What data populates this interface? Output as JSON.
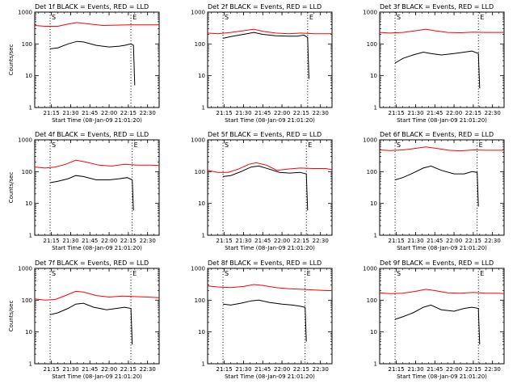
{
  "figure": {
    "background": "#ffffff",
    "axis_color": "#000000"
  },
  "chart_data": [
    {
      "type": "line",
      "title": "Det 1f BLACK = Events, RED = LLD",
      "xlabel": "Start Time (08-Jan-09 21:01:20)",
      "ylabel": "Counts/sec",
      "yscale": "log",
      "ylim": [
        1,
        1000
      ],
      "xlim": [
        "21:02",
        "22:39"
      ],
      "x_ticks": [
        "21:15",
        "21:30",
        "21:45",
        "22:00",
        "22:15",
        "22:30"
      ],
      "y_ticks": [
        "1",
        "10",
        "100",
        "1000"
      ],
      "markers": [
        {
          "time": "21:14",
          "label": "S"
        },
        {
          "time": "22:17",
          "label": "E"
        }
      ],
      "series": [
        {
          "color": "#ff0000",
          "x": [
            "21:02",
            "21:10",
            "21:20",
            "21:28",
            "21:35",
            "21:45",
            "21:55",
            "22:05",
            "22:15",
            "22:25",
            "22:35",
            "22:39"
          ],
          "y": [
            380,
            360,
            360,
            420,
            470,
            420,
            380,
            390,
            400,
            400,
            400,
            400
          ]
        },
        {
          "color": "#000000",
          "x": [
            "21:14",
            "21:20",
            "21:28",
            "21:35",
            "21:40",
            "21:50",
            "22:00",
            "22:08",
            "22:12",
            "22:17",
            "22:19",
            "22:20"
          ],
          "y": [
            70,
            75,
            100,
            120,
            115,
            90,
            80,
            85,
            90,
            100,
            90,
            5
          ]
        }
      ]
    },
    {
      "type": "line",
      "title": "Det 2f BLACK = Events, RED = LLD",
      "xlabel": "Start Time (08-Jan-09 21:01:20)",
      "ylabel": "",
      "yscale": "log",
      "ylim": [
        1,
        1000
      ],
      "xlim": [
        "21:02",
        "22:39"
      ],
      "x_ticks": [
        "21:15",
        "21:30",
        "21:45",
        "22:00",
        "22:15",
        "22:30"
      ],
      "y_ticks": [
        "1",
        "10",
        "100",
        "1000"
      ],
      "markers": [
        {
          "time": "21:14",
          "label": "S"
        },
        {
          "time": "22:20",
          "label": "E"
        }
      ],
      "series": [
        {
          "color": "#ff0000",
          "x": [
            "21:02",
            "21:10",
            "21:20",
            "21:30",
            "21:38",
            "21:45",
            "21:55",
            "22:05",
            "22:15",
            "22:25",
            "22:35",
            "22:39"
          ],
          "y": [
            220,
            210,
            230,
            260,
            290,
            250,
            220,
            210,
            220,
            210,
            210,
            210
          ]
        },
        {
          "color": "#000000",
          "x": [
            "21:14",
            "21:20",
            "21:30",
            "21:38",
            "21:45",
            "21:55",
            "22:05",
            "22:12",
            "22:17",
            "22:20",
            "22:21"
          ],
          "y": [
            150,
            170,
            200,
            230,
            200,
            180,
            175,
            175,
            190,
            160,
            8
          ]
        }
      ]
    },
    {
      "type": "line",
      "title": "Det 3f BLACK = Events, RED = LLD",
      "xlabel": "Start Time (08-Jan-09 21:01:20)",
      "ylabel": "",
      "yscale": "log",
      "ylim": [
        1,
        1000
      ],
      "xlim": [
        "21:02",
        "22:39"
      ],
      "x_ticks": [
        "21:15",
        "21:30",
        "21:45",
        "22:00",
        "22:15",
        "22:30"
      ],
      "y_ticks": [
        "1",
        "10",
        "100",
        "1000"
      ],
      "markers": [
        {
          "time": "21:14",
          "label": "S"
        },
        {
          "time": "22:19",
          "label": "E"
        }
      ],
      "series": [
        {
          "color": "#ff0000",
          "x": [
            "21:02",
            "21:10",
            "21:20",
            "21:30",
            "21:38",
            "21:45",
            "21:55",
            "22:05",
            "22:15",
            "22:25",
            "22:35",
            "22:39"
          ],
          "y": [
            230,
            220,
            230,
            260,
            290,
            260,
            230,
            225,
            235,
            230,
            230,
            230
          ]
        },
        {
          "color": "#000000",
          "x": [
            "21:14",
            "21:20",
            "21:28",
            "21:36",
            "21:42",
            "21:50",
            "22:00",
            "22:08",
            "22:14",
            "22:19",
            "22:20"
          ],
          "y": [
            25,
            35,
            45,
            55,
            50,
            45,
            50,
            55,
            60,
            50,
            4
          ]
        }
      ]
    },
    {
      "type": "line",
      "title": "Det 4f BLACK = Events, RED = LLD",
      "xlabel": "Start Time (08-Jan-09 21:01:20)",
      "ylabel": "Counts/sec",
      "yscale": "log",
      "ylim": [
        1,
        1000
      ],
      "xlim": [
        "21:02",
        "22:39"
      ],
      "x_ticks": [
        "21:15",
        "21:30",
        "21:45",
        "22:00",
        "22:15",
        "22:30"
      ],
      "y_ticks": [
        "1",
        "10",
        "100",
        "1000"
      ],
      "markers": [
        {
          "time": "21:14",
          "label": "S"
        },
        {
          "time": "22:18",
          "label": "E"
        }
      ],
      "series": [
        {
          "color": "#ff0000",
          "x": [
            "21:02",
            "21:10",
            "21:18",
            "21:26",
            "21:34",
            "21:42",
            "21:52",
            "22:02",
            "22:12",
            "22:22",
            "22:32",
            "22:39"
          ],
          "y": [
            140,
            130,
            140,
            170,
            230,
            200,
            160,
            150,
            170,
            160,
            160,
            155
          ]
        },
        {
          "color": "#000000",
          "x": [
            "21:14",
            "21:20",
            "21:28",
            "21:34",
            "21:40",
            "21:50",
            "22:00",
            "22:08",
            "22:14",
            "22:18",
            "22:19"
          ],
          "y": [
            45,
            50,
            60,
            75,
            70,
            55,
            55,
            60,
            65,
            55,
            6
          ]
        }
      ]
    },
    {
      "type": "line",
      "title": "Det 5f BLACK = Events, RED = LLD",
      "xlabel": "Start Time (08-Jan-09 21:01:20)",
      "ylabel": "",
      "yscale": "log",
      "ylim": [
        1,
        1000
      ],
      "xlim": [
        "21:02",
        "22:39"
      ],
      "x_ticks": [
        "21:15",
        "21:30",
        "21:45",
        "22:00",
        "22:15",
        "22:30"
      ],
      "y_ticks": [
        "1",
        "10",
        "100",
        "1000"
      ],
      "markers": [
        {
          "time": "21:14",
          "label": "S"
        },
        {
          "time": "22:19",
          "label": "E"
        }
      ],
      "series": [
        {
          "color": "#ff0000",
          "x": [
            "21:02",
            "21:10",
            "21:18",
            "21:26",
            "21:34",
            "21:40",
            "21:48",
            "21:56",
            "22:04",
            "22:14",
            "22:24",
            "22:34",
            "22:39"
          ],
          "y": [
            110,
            95,
            95,
            120,
            170,
            190,
            160,
            110,
            120,
            130,
            125,
            125,
            115
          ]
        },
        {
          "color": "#000000",
          "x": [
            "21:14",
            "21:20",
            "21:28",
            "21:36",
            "21:42",
            "21:50",
            "21:58",
            "22:06",
            "22:14",
            "22:19",
            "22:20"
          ],
          "y": [
            70,
            75,
            100,
            140,
            150,
            120,
            95,
            90,
            95,
            85,
            6
          ]
        }
      ]
    },
    {
      "type": "line",
      "title": "Det 6f BLACK = Events, RED = LLD",
      "xlabel": "Start Time (08-Jan-09 21:01:20)",
      "ylabel": "",
      "yscale": "log",
      "ylim": [
        1,
        1000
      ],
      "xlim": [
        "21:02",
        "22:39"
      ],
      "x_ticks": [
        "21:15",
        "21:30",
        "21:45",
        "22:00",
        "22:15",
        "22:30"
      ],
      "y_ticks": [
        "1",
        "10",
        "100",
        "1000"
      ],
      "markers": [
        {
          "time": "21:14",
          "label": "S"
        },
        {
          "time": "22:18",
          "label": "E"
        }
      ],
      "series": [
        {
          "color": "#ff0000",
          "x": [
            "21:02",
            "21:10",
            "21:20",
            "21:30",
            "21:38",
            "21:46",
            "21:56",
            "22:05",
            "22:15",
            "22:25",
            "22:35",
            "22:39"
          ],
          "y": [
            480,
            460,
            480,
            540,
            600,
            540,
            470,
            450,
            480,
            470,
            470,
            470
          ]
        },
        {
          "color": "#000000",
          "x": [
            "21:14",
            "21:20",
            "21:28",
            "21:36",
            "21:42",
            "21:50",
            "22:00",
            "22:08",
            "22:14",
            "22:18",
            "22:19"
          ],
          "y": [
            55,
            65,
            90,
            130,
            150,
            110,
            85,
            85,
            100,
            95,
            8
          ]
        }
      ]
    },
    {
      "type": "line",
      "title": "Det 7f BLACK = Events, RED = LLD",
      "xlabel": "Start Time (08-Jan-09 21:01:20)",
      "ylabel": "Counts/sec",
      "yscale": "log",
      "ylim": [
        1,
        1000
      ],
      "xlim": [
        "21:02",
        "22:39"
      ],
      "x_ticks": [
        "21:15",
        "21:30",
        "21:45",
        "22:00",
        "22:15",
        "22:30"
      ],
      "y_ticks": [
        "1",
        "10",
        "100",
        "1000"
      ],
      "markers": [
        {
          "time": "21:14",
          "label": "S"
        },
        {
          "time": "22:17",
          "label": "E"
        }
      ],
      "series": [
        {
          "color": "#ff0000",
          "x": [
            "21:02",
            "21:10",
            "21:18",
            "21:26",
            "21:34",
            "21:40",
            "21:50",
            "22:00",
            "22:10",
            "22:20",
            "22:30",
            "22:39"
          ],
          "y": [
            110,
            100,
            105,
            140,
            190,
            180,
            140,
            125,
            135,
            130,
            125,
            120
          ]
        },
        {
          "color": "#000000",
          "x": [
            "21:14",
            "21:20",
            "21:28",
            "21:34",
            "21:40",
            "21:48",
            "21:58",
            "22:06",
            "22:12",
            "22:17",
            "22:18"
          ],
          "y": [
            35,
            40,
            55,
            75,
            80,
            60,
            50,
            55,
            60,
            55,
            4
          ]
        }
      ]
    },
    {
      "type": "line",
      "title": "Det 8f BLACK = Events, RED = LLD",
      "xlabel": "Start Time (08-Jan-09 21:01:20)",
      "ylabel": "",
      "yscale": "log",
      "ylim": [
        1,
        1000
      ],
      "xlim": [
        "21:02",
        "22:39"
      ],
      "x_ticks": [
        "21:15",
        "21:30",
        "21:45",
        "22:00",
        "22:15",
        "22:30"
      ],
      "y_ticks": [
        "1",
        "10",
        "100",
        "1000"
      ],
      "markers": [
        {
          "time": "21:14",
          "label": "S"
        },
        {
          "time": "22:18",
          "label": "E"
        }
      ],
      "series": [
        {
          "color": "#ff0000",
          "x": [
            "21:02",
            "21:10",
            "21:20",
            "21:30",
            "21:38",
            "21:45",
            "21:55",
            "22:05",
            "22:15",
            "22:25",
            "22:35",
            "22:39"
          ],
          "y": [
            280,
            260,
            250,
            270,
            310,
            290,
            250,
            230,
            220,
            210,
            200,
            200
          ]
        },
        {
          "color": "#000000",
          "x": [
            "21:14",
            "21:20",
            "21:28",
            "21:36",
            "21:42",
            "21:50",
            "22:00",
            "22:08",
            "22:14",
            "22:18",
            "22:19"
          ],
          "y": [
            75,
            70,
            80,
            95,
            100,
            85,
            75,
            70,
            65,
            60,
            5
          ]
        }
      ]
    },
    {
      "type": "line",
      "title": "Det 9f BLACK = Events, RED = LLD",
      "xlabel": "Start Time (08-Jan-09 21:01:20)",
      "ylabel": "",
      "yscale": "log",
      "ylim": [
        1,
        1000
      ],
      "xlim": [
        "21:02",
        "22:39"
      ],
      "x_ticks": [
        "21:15",
        "21:30",
        "21:45",
        "22:00",
        "22:15",
        "22:30"
      ],
      "y_ticks": [
        "1",
        "10",
        "100",
        "1000"
      ],
      "markers": [
        {
          "time": "21:14",
          "label": "S"
        },
        {
          "time": "22:19",
          "label": "E"
        }
      ],
      "series": [
        {
          "color": "#ff0000",
          "x": [
            "21:02",
            "21:10",
            "21:20",
            "21:30",
            "21:38",
            "21:45",
            "21:55",
            "22:05",
            "22:15",
            "22:25",
            "22:35",
            "22:39"
          ],
          "y": [
            170,
            160,
            165,
            190,
            220,
            200,
            170,
            165,
            175,
            165,
            165,
            160
          ]
        },
        {
          "color": "#000000",
          "x": [
            "21:14",
            "21:20",
            "21:28",
            "21:36",
            "21:42",
            "21:50",
            "22:00",
            "22:08",
            "22:14",
            "22:19",
            "22:20"
          ],
          "y": [
            25,
            30,
            40,
            60,
            70,
            50,
            45,
            55,
            60,
            55,
            4
          ]
        }
      ]
    }
  ]
}
